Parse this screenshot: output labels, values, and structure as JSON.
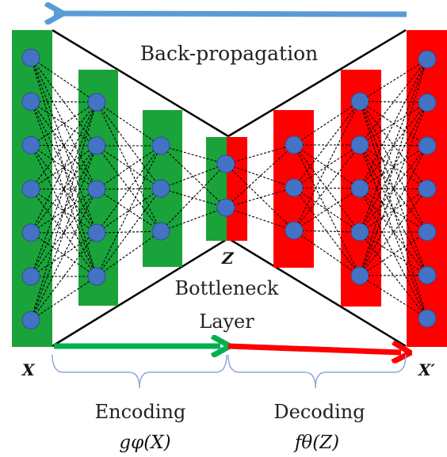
{
  "labels": {
    "backprop": "Back-propagation",
    "bottleneck": "Bottleneck",
    "layer": "Layer",
    "encoding": "Encoding",
    "decoding": "Decoding",
    "input_var": "X",
    "output_var": "X′",
    "latent_var": "Z",
    "encoder_func": "gφ(X)",
    "decoder_func": "fθ(Z)"
  },
  "network": {
    "layers": [
      {
        "name": "input",
        "nodes": 7,
        "color": "#1aa33a"
      },
      {
        "name": "encoder-hidden-1",
        "nodes": 5,
        "color": "#1aa33a"
      },
      {
        "name": "encoder-hidden-2",
        "nodes": 3,
        "color": "#1aa33a"
      },
      {
        "name": "bottleneck",
        "nodes": 2,
        "color": "split"
      },
      {
        "name": "decoder-hidden-1",
        "nodes": 3,
        "color": "#ff0000"
      },
      {
        "name": "decoder-hidden-2",
        "nodes": 5,
        "color": "#ff0000"
      },
      {
        "name": "output",
        "nodes": 7,
        "color": "#ff0000"
      }
    ],
    "node_color": "#4472c4",
    "edge_style": "dashed"
  },
  "colors": {
    "encoder": "#1aa33a",
    "decoder": "#ff0000",
    "node": "#4472c4",
    "backprop_arrow": "#5b9bd5",
    "encoding_arrow": "#00b050",
    "decoding_arrow": "#ff0000",
    "brace": "#8eaadb"
  }
}
